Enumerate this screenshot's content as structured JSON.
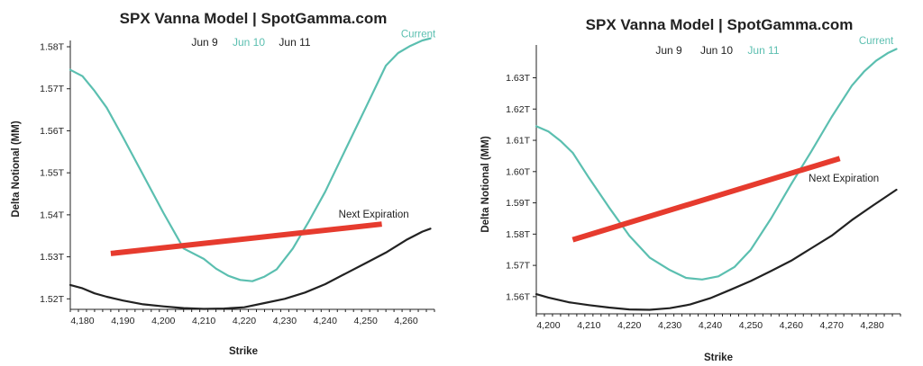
{
  "colors": {
    "current": "#5bbfb0",
    "next_expiration": "#e63b2e",
    "black_line": "#222222",
    "text": "#222222"
  },
  "chart_data": [
    {
      "type": "line",
      "title": "SPX Vanna Model | SpotGamma.com",
      "xlabel": "Strike",
      "ylabel": "Delta Notional (MM)",
      "legend": [
        {
          "label": "Jun 9",
          "color": "#222222"
        },
        {
          "label": "Jun 10",
          "color": "#5bbfb0"
        },
        {
          "label": "Jun 11",
          "color": "#222222"
        }
      ],
      "xlim": [
        4177,
        4267
      ],
      "ylim": [
        1.5175,
        1.5815
      ],
      "xticks": [
        4180,
        4190,
        4200,
        4210,
        4220,
        4230,
        4240,
        4250,
        4260
      ],
      "xtick_labels": [
        "4,180",
        "4,190",
        "4,200",
        "4,210",
        "4,220",
        "4,230",
        "4,240",
        "4,250",
        "4,260"
      ],
      "yticks": [
        1.52,
        1.53,
        1.54,
        1.55,
        1.56,
        1.57,
        1.58
      ],
      "ytick_labels": [
        "1.52T",
        "1.53T",
        "1.54T",
        "1.55T",
        "1.56T",
        "1.57T",
        "1.58T"
      ],
      "series": [
        {
          "name": "Current",
          "color": "#5bbfb0",
          "x": [
            4177,
            4180,
            4183,
            4186,
            4190,
            4195,
            4200,
            4205,
            4210,
            4213,
            4216,
            4219,
            4222,
            4225,
            4228,
            4232,
            4236,
            4240,
            4245,
            4250,
            4255,
            4258,
            4261,
            4264,
            4266
          ],
          "y": [
            1.5745,
            1.573,
            1.5695,
            1.5655,
            1.5585,
            1.5495,
            1.5405,
            1.532,
            1.5295,
            1.5272,
            1.5255,
            1.5245,
            1.5242,
            1.5253,
            1.527,
            1.532,
            1.5385,
            1.5455,
            1.5555,
            1.5655,
            1.5755,
            1.5785,
            1.5802,
            1.5815,
            1.582
          ]
        },
        {
          "name": "Next Expiration",
          "color": "#e63b2e",
          "x": [
            4187,
            4254
          ],
          "y": [
            1.5308,
            1.5378
          ]
        },
        {
          "name": "",
          "color": "#222222",
          "x": [
            4177,
            4180,
            4183,
            4186,
            4190,
            4195,
            4200,
            4205,
            4210,
            4215,
            4220,
            4225,
            4230,
            4235,
            4240,
            4245,
            4250,
            4255,
            4260,
            4264,
            4266
          ],
          "y": [
            1.5233,
            1.5225,
            1.5213,
            1.5205,
            1.5196,
            1.5187,
            1.5182,
            1.5178,
            1.5176,
            1.5177,
            1.518,
            1.519,
            1.52,
            1.5215,
            1.5235,
            1.526,
            1.5285,
            1.531,
            1.534,
            1.536,
            1.5367
          ]
        }
      ],
      "annotations": [
        {
          "text": "Current",
          "x": 4263,
          "y": 1.5822,
          "color": "#5bbfb0"
        },
        {
          "text": "Next Expiration",
          "x": 4252,
          "y": 1.5393,
          "color": "#222222"
        }
      ]
    },
    {
      "type": "line",
      "title": "SPX Vanna Model | SpotGamma.com",
      "xlabel": "Strike",
      "ylabel": "Delta Notional (MM)",
      "legend": [
        {
          "label": "Jun 9",
          "color": "#222222"
        },
        {
          "label": "Jun 10",
          "color": "#222222"
        },
        {
          "label": "Jun 11",
          "color": "#5bbfb0"
        }
      ],
      "xlim": [
        4197,
        4287
      ],
      "ylim": [
        1.5545,
        1.6405
      ],
      "xticks": [
        4200,
        4210,
        4220,
        4230,
        4240,
        4250,
        4260,
        4270,
        4280
      ],
      "xtick_labels": [
        "4,200",
        "4,210",
        "4,220",
        "4,230",
        "4,240",
        "4,250",
        "4,260",
        "4,270",
        "4,280"
      ],
      "yticks": [
        1.56,
        1.57,
        1.58,
        1.59,
        1.6,
        1.61,
        1.62,
        1.63
      ],
      "ytick_labels": [
        "1.56T",
        "1.57T",
        "1.58T",
        "1.59T",
        "1.60T",
        "1.61T",
        "1.62T",
        "1.63T"
      ],
      "series": [
        {
          "name": "Current",
          "color": "#5bbfb0",
          "x": [
            4197,
            4200,
            4203,
            4206,
            4210,
            4215,
            4220,
            4225,
            4230,
            4234,
            4238,
            4242,
            4246,
            4250,
            4255,
            4260,
            4265,
            4270,
            4275,
            4278,
            4281,
            4284,
            4286
          ],
          "y": [
            1.6145,
            1.6128,
            1.6098,
            1.606,
            1.598,
            1.5885,
            1.5795,
            1.5725,
            1.5685,
            1.566,
            1.5655,
            1.5665,
            1.5695,
            1.575,
            1.585,
            1.596,
            1.6065,
            1.6175,
            1.6275,
            1.632,
            1.6355,
            1.638,
            1.6392
          ]
        },
        {
          "name": "Next Expiration",
          "color": "#e63b2e",
          "x": [
            4206,
            4272
          ],
          "y": [
            1.5782,
            1.6042
          ]
        },
        {
          "name": "",
          "color": "#222222",
          "x": [
            4197,
            4200,
            4205,
            4210,
            4215,
            4220,
            4225,
            4230,
            4235,
            4240,
            4245,
            4250,
            4255,
            4260,
            4265,
            4270,
            4275,
            4280,
            4286
          ],
          "y": [
            1.5608,
            1.5597,
            1.5582,
            1.5573,
            1.5565,
            1.5559,
            1.5558,
            1.5563,
            1.5575,
            1.5595,
            1.5622,
            1.565,
            1.5682,
            1.5715,
            1.5755,
            1.5795,
            1.5845,
            1.589,
            1.5942
          ]
        }
      ],
      "annotations": [
        {
          "text": "Current",
          "x": 4281,
          "y": 1.6408,
          "color": "#5bbfb0"
        },
        {
          "text": "Next Expiration",
          "x": 4273,
          "y": 1.5968,
          "color": "#222222"
        }
      ]
    }
  ]
}
